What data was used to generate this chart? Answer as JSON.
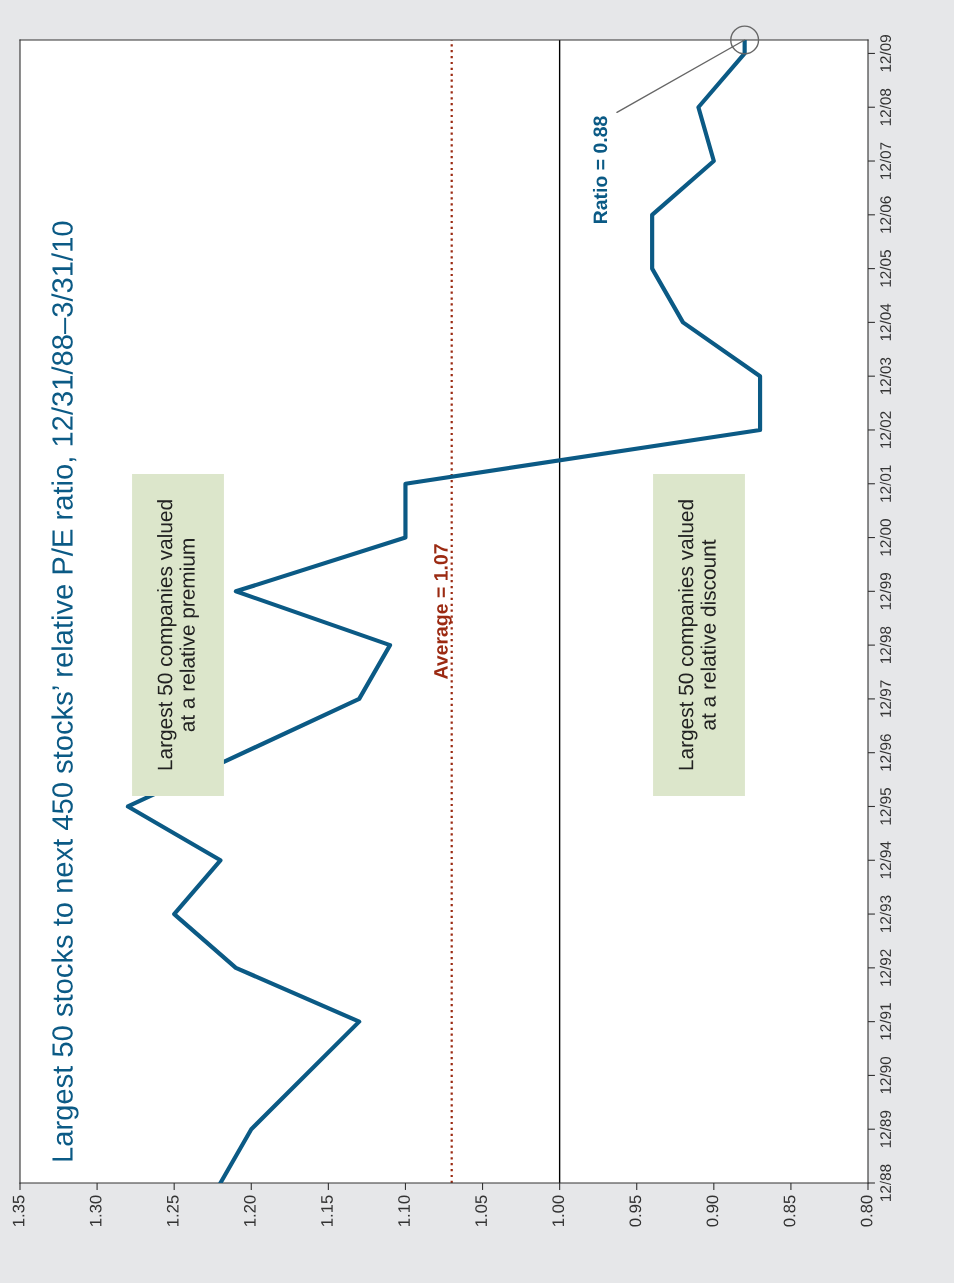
{
  "chart_data": {
    "type": "line",
    "orientation": "horizontal",
    "title": "Largest 50 stocks to next 450 stocks’ relative P/E ratio, 12/31/88–3/31/10",
    "x": [
      "1988-12",
      "1989-12",
      "1991-12",
      "1992-12",
      "1993-12",
      "1994-12",
      "1995-12",
      "1996-12",
      "1997-12",
      "1998-12",
      "1999-12",
      "2000-12",
      "2001-12",
      "2002-12",
      "2003-12",
      "2004-12",
      "2005-12",
      "2006-12",
      "2007-12",
      "2008-12",
      "2009-12",
      "2010-03"
    ],
    "series": [
      {
        "color": "#0b5a85",
        "values": [
          1.22,
          1.2,
          1.13,
          1.21,
          1.25,
          1.22,
          1.28,
          null,
          1.13,
          1.11,
          1.21,
          1.1,
          1.1,
          0.87,
          0.87,
          0.92,
          0.94,
          0.94,
          0.9,
          0.91,
          0.88,
          0.88
        ]
      }
    ],
    "xlim": [
      1.35,
      0.8
    ],
    "xticks": [
      {
        "value": 1.35,
        "label": "1.35"
      },
      {
        "value": 1.3,
        "label": "1.30"
      },
      {
        "value": 1.25,
        "label": "1.25"
      },
      {
        "value": 1.2,
        "label": "1.20"
      },
      {
        "value": 1.15,
        "label": "1.15"
      },
      {
        "value": 1.1,
        "label": "1.10"
      },
      {
        "value": 1.05,
        "label": "1.05"
      },
      {
        "value": 1.0,
        "label": "1.00"
      },
      {
        "value": 0.95,
        "label": "0.95"
      },
      {
        "value": 0.9,
        "label": "0.90"
      },
      {
        "value": 0.85,
        "label": "0.85"
      },
      {
        "value": 0.8,
        "label": "0.80"
      }
    ],
    "ylim": [
      "1988-12",
      "2010-03"
    ],
    "yticks": [
      {
        "value": "1988-12",
        "label": "12/88"
      },
      {
        "value": "1989-12",
        "label": "12/89"
      },
      {
        "value": "1990-12",
        "label": "12/90"
      },
      {
        "value": "1991-12",
        "label": "12/91"
      },
      {
        "value": "1992-12",
        "label": "12/92"
      },
      {
        "value": "1993-12",
        "label": "12/93"
      },
      {
        "value": "1994-12",
        "label": "12/94"
      },
      {
        "value": "1995-12",
        "label": "12/95"
      },
      {
        "value": "1996-12",
        "label": "12/96"
      },
      {
        "value": "1997-12",
        "label": "12/97"
      },
      {
        "value": "1998-12",
        "label": "12/98"
      },
      {
        "value": "1999-12",
        "label": "12/99"
      },
      {
        "value": "2000-12",
        "label": "12/00"
      },
      {
        "value": "2001-12",
        "label": "12/01"
      },
      {
        "value": "2002-12",
        "label": "12/02"
      },
      {
        "value": "2003-12",
        "label": "12/03"
      },
      {
        "value": "2004-12",
        "label": "12/04"
      },
      {
        "value": "2005-12",
        "label": "12/05"
      },
      {
        "value": "2006-12",
        "label": "12/06"
      },
      {
        "value": "2007-12",
        "label": "12/07"
      },
      {
        "value": "2008-12",
        "label": "12/08"
      },
      {
        "value": "2009-12",
        "label": "12/09"
      }
    ],
    "ref_lines": [
      {
        "axis": "x",
        "value": 1.07,
        "label": "Average = 1.07",
        "color": "#9b2a12",
        "line_style": "dotted"
      },
      {
        "axis": "x",
        "value": 1.0,
        "color": "#000000",
        "line_style": "solid"
      }
    ],
    "annotations": [
      {
        "text": "Ratio = 0.88",
        "x": 0.88,
        "y": "2010-03"
      },
      "Largest 50 companies valued\nat a relative premium",
      "Largest 50 companies valued\nat a relative discount"
    ],
    "grid": false,
    "legend": false
  }
}
